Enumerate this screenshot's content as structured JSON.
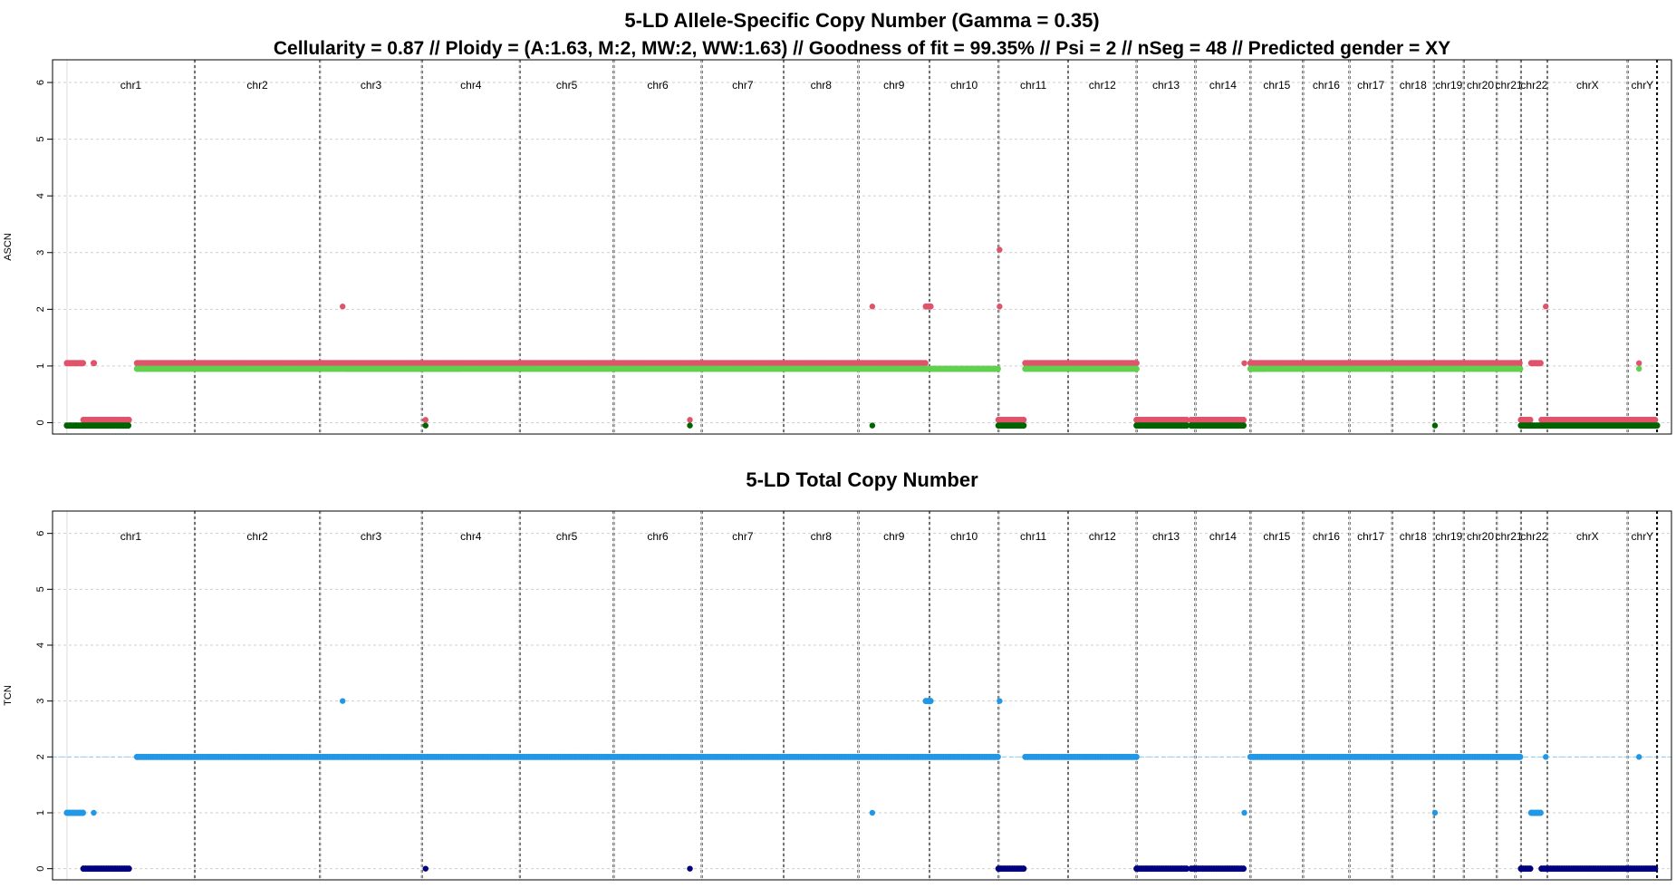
{
  "chart_data": [
    {
      "type": "scatter",
      "panel": "ascn",
      "title": "5-LD Allele-Specific Copy Number (Gamma = 0.35)",
      "subtitle": "Cellularity = 0.87 // Ploidy = (A:1.63, M:2, MW:2, WW:1.63) // Goodness of fit = 99.35% // Psi = 2 // nSeg = 48 // Predicted gender = XY",
      "ylabel": "ASCN",
      "ylim": [
        -0.2,
        6.4
      ],
      "yticks": [
        0,
        1,
        2,
        3,
        4,
        5,
        6
      ],
      "grid": true,
      "legend": "none",
      "chromosomes": [
        {
          "label": "chr1",
          "start": 0,
          "end": 248
        },
        {
          "label": "chr2",
          "start": 248,
          "end": 491
        },
        {
          "label": "chr3",
          "start": 491,
          "end": 689
        },
        {
          "label": "chr4",
          "start": 689,
          "end": 879
        },
        {
          "label": "chr5",
          "start": 879,
          "end": 1061
        },
        {
          "label": "chr6",
          "start": 1061,
          "end": 1232
        },
        {
          "label": "chr7",
          "start": 1232,
          "end": 1391
        },
        {
          "label": "chr8",
          "start": 1391,
          "end": 1536
        },
        {
          "label": "chr9",
          "start": 1536,
          "end": 1674
        },
        {
          "label": "chr10",
          "start": 1674,
          "end": 1808
        },
        {
          "label": "chr11",
          "start": 1808,
          "end": 1943
        },
        {
          "label": "chr12",
          "start": 1943,
          "end": 2076
        },
        {
          "label": "chr13",
          "start": 2076,
          "end": 2190
        },
        {
          "label": "chr14",
          "start": 2190,
          "end": 2297
        },
        {
          "label": "chr15",
          "start": 2297,
          "end": 2399
        },
        {
          "label": "chr16",
          "start": 2399,
          "end": 2489
        },
        {
          "label": "chr17",
          "start": 2489,
          "end": 2572
        },
        {
          "label": "chr18",
          "start": 2572,
          "end": 2653
        },
        {
          "label": "chr19",
          "start": 2653,
          "end": 2711
        },
        {
          "label": "chr20",
          "start": 2711,
          "end": 2775
        },
        {
          "label": "chr21",
          "start": 2775,
          "end": 2822
        },
        {
          "label": "chr22",
          "start": 2822,
          "end": 2873
        },
        {
          "label": "chrX",
          "start": 2873,
          "end": 3029
        },
        {
          "label": "chrY",
          "start": 3029,
          "end": 3086
        }
      ],
      "series": [
        {
          "color": "#df536b",
          "segments": [
            {
              "start": 0,
              "end": 32,
              "y": 1.05
            },
            {
              "start": 32,
              "end": 123,
              "y": 0.05
            },
            {
              "start": 52,
              "end": 56,
              "y": 1.05
            },
            {
              "start": 136,
              "end": 1667,
              "y": 1.05
            },
            {
              "start": 1667,
              "end": 1679,
              "y": 2.05
            },
            {
              "start": 1808,
              "end": 1860,
              "y": 0.05
            },
            {
              "start": 1860,
              "end": 2076,
              "y": 1.05
            },
            {
              "start": 2076,
              "end": 2175,
              "y": 0.05
            },
            {
              "start": 2182,
              "end": 2285,
              "y": 0.05
            },
            {
              "start": 2297,
              "end": 2775,
              "y": 1.05
            },
            {
              "start": 2775,
              "end": 2822,
              "y": 1.05
            },
            {
              "start": 2822,
              "end": 2842,
              "y": 0.05
            },
            {
              "start": 2842,
              "end": 2862,
              "y": 1.05
            },
            {
              "start": 2862,
              "end": 3086,
              "y": 0.05
            }
          ],
          "points": [
            {
              "x": 535,
              "y": 2.05
            },
            {
              "x": 1563,
              "y": 2.05
            },
            {
              "x": 1810,
              "y": 3.05
            },
            {
              "x": 1810,
              "y": 2.05
            },
            {
              "x": 2870,
              "y": 2.05
            },
            {
              "x": 696,
              "y": 0.05
            },
            {
              "x": 1209,
              "y": 0.05
            },
            {
              "x": 2285,
              "y": 1.05
            },
            {
              "x": 3051,
              "y": 1.05
            }
          ]
        },
        {
          "color": "#61d04f",
          "segments": [
            {
              "start": 136,
              "end": 1808,
              "y": 0.95
            },
            {
              "start": 1860,
              "end": 2076,
              "y": 0.95
            },
            {
              "start": 2297,
              "end": 2822,
              "y": 0.95
            }
          ],
          "points": [
            {
              "x": 3051,
              "y": 0.95
            }
          ]
        },
        {
          "color": "#006400",
          "segments": [
            {
              "start": 0,
              "end": 123,
              "y": -0.05
            },
            {
              "start": 1808,
              "end": 1860,
              "y": -0.05
            },
            {
              "start": 2076,
              "end": 2175,
              "y": -0.05
            },
            {
              "start": 2182,
              "end": 2285,
              "y": -0.05
            },
            {
              "start": 2822,
              "end": 3086,
              "y": -0.05
            }
          ],
          "points": [
            {
              "x": 696,
              "y": -0.05
            },
            {
              "x": 1209,
              "y": -0.05
            },
            {
              "x": 1563,
              "y": -0.05
            },
            {
              "x": 2655,
              "y": -0.05
            }
          ]
        }
      ]
    },
    {
      "type": "scatter",
      "panel": "tcn",
      "title": "5-LD Total Copy Number",
      "ylabel": "TCN",
      "ylim": [
        -0.2,
        6.4
      ],
      "yticks": [
        0,
        1,
        2,
        3,
        4,
        5,
        6
      ],
      "grid": true,
      "legend": "none",
      "reference_line": 2,
      "series": [
        {
          "color": "#2297e6",
          "segments": [
            {
              "start": 0,
              "end": 32,
              "y": 1
            },
            {
              "start": 136,
              "end": 1808,
              "y": 2
            },
            {
              "start": 1667,
              "end": 1679,
              "y": 3
            },
            {
              "start": 1860,
              "end": 2076,
              "y": 2
            },
            {
              "start": 2297,
              "end": 2822,
              "y": 2
            },
            {
              "start": 2842,
              "end": 2862,
              "y": 1
            }
          ],
          "points": [
            {
              "x": 52,
              "y": 1
            },
            {
              "x": 535,
              "y": 3
            },
            {
              "x": 1563,
              "y": 1
            },
            {
              "x": 1810,
              "y": 3
            },
            {
              "x": 2285,
              "y": 1
            },
            {
              "x": 2655,
              "y": 1
            },
            {
              "x": 2870,
              "y": 2
            },
            {
              "x": 3051,
              "y": 2
            }
          ]
        },
        {
          "color": "#000080",
          "segments": [
            {
              "start": 32,
              "end": 123,
              "y": 0
            },
            {
              "start": 1808,
              "end": 1860,
              "y": 0
            },
            {
              "start": 2076,
              "end": 2175,
              "y": 0
            },
            {
              "start": 2182,
              "end": 2285,
              "y": 0
            },
            {
              "start": 2822,
              "end": 2842,
              "y": 0
            },
            {
              "start": 2862,
              "end": 3086,
              "y": 0
            }
          ],
          "points": [
            {
              "x": 696,
              "y": 0
            },
            {
              "x": 1209,
              "y": 0
            }
          ]
        }
      ]
    }
  ]
}
